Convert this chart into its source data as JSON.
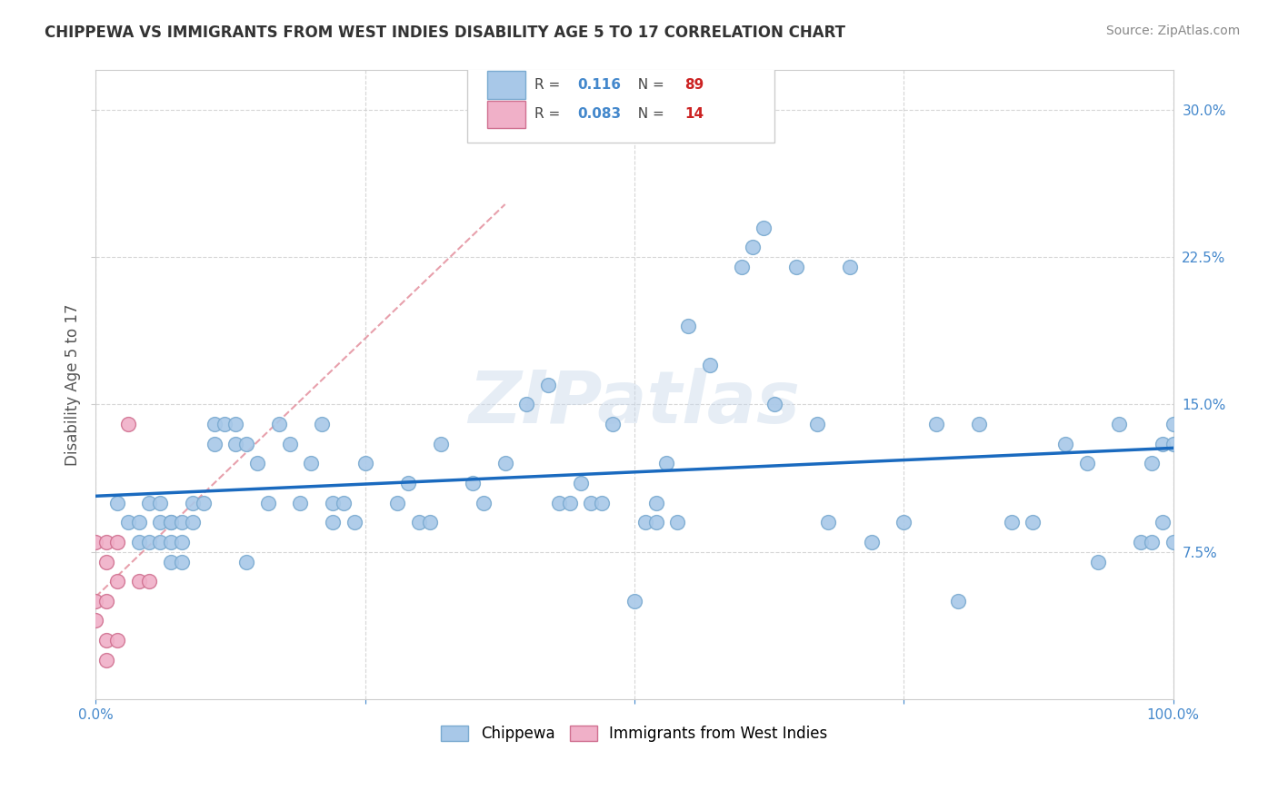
{
  "title": "CHIPPEWA VS IMMIGRANTS FROM WEST INDIES DISABILITY AGE 5 TO 17 CORRELATION CHART",
  "source": "Source: ZipAtlas.com",
  "ylabel": "Disability Age 5 to 17",
  "r_chippewa": 0.116,
  "n_chippewa": 89,
  "r_west_indies": 0.083,
  "n_west_indies": 14,
  "chippewa_color": "#a8c8e8",
  "chippewa_edge": "#7aaad0",
  "west_indies_color": "#f0b0c8",
  "west_indies_edge": "#d07090",
  "trend_chippewa_color": "#1a6abf",
  "trend_west_indies_color": "#e08090",
  "background_color": "#ffffff",
  "grid_color": "#cccccc",
  "watermark": "ZIPatlas",
  "xlim": [
    0.0,
    1.0
  ],
  "ylim": [
    0.0,
    0.32
  ],
  "yticks": [
    0.075,
    0.15,
    0.225,
    0.3
  ],
  "ytick_labels": [
    "7.5%",
    "15.0%",
    "22.5%",
    "30.0%"
  ],
  "xticks": [
    0.0,
    0.25,
    0.5,
    0.75,
    1.0
  ],
  "xtick_labels": [
    "0.0%",
    "",
    "",
    "",
    "100.0%"
  ],
  "chippewa_x": [
    0.02,
    0.03,
    0.04,
    0.04,
    0.05,
    0.05,
    0.06,
    0.06,
    0.06,
    0.07,
    0.07,
    0.07,
    0.07,
    0.08,
    0.08,
    0.08,
    0.09,
    0.09,
    0.1,
    0.11,
    0.11,
    0.12,
    0.13,
    0.13,
    0.14,
    0.14,
    0.15,
    0.16,
    0.17,
    0.18,
    0.19,
    0.2,
    0.21,
    0.22,
    0.22,
    0.23,
    0.24,
    0.25,
    0.28,
    0.29,
    0.3,
    0.31,
    0.32,
    0.35,
    0.36,
    0.38,
    0.4,
    0.42,
    0.43,
    0.44,
    0.45,
    0.46,
    0.47,
    0.48,
    0.5,
    0.51,
    0.52,
    0.52,
    0.53,
    0.54,
    0.55,
    0.57,
    0.6,
    0.61,
    0.62,
    0.63,
    0.65,
    0.67,
    0.68,
    0.7,
    0.72,
    0.75,
    0.78,
    0.8,
    0.82,
    0.85,
    0.87,
    0.9,
    0.92,
    0.93,
    0.95,
    0.97,
    0.98,
    0.98,
    0.99,
    0.99,
    1.0,
    1.0,
    1.0
  ],
  "chippewa_y": [
    0.1,
    0.09,
    0.09,
    0.08,
    0.1,
    0.08,
    0.1,
    0.09,
    0.08,
    0.09,
    0.09,
    0.08,
    0.07,
    0.09,
    0.08,
    0.07,
    0.1,
    0.09,
    0.1,
    0.14,
    0.13,
    0.14,
    0.14,
    0.13,
    0.13,
    0.07,
    0.12,
    0.1,
    0.14,
    0.13,
    0.1,
    0.12,
    0.14,
    0.1,
    0.09,
    0.1,
    0.09,
    0.12,
    0.1,
    0.11,
    0.09,
    0.09,
    0.13,
    0.11,
    0.1,
    0.12,
    0.15,
    0.16,
    0.1,
    0.1,
    0.11,
    0.1,
    0.1,
    0.14,
    0.05,
    0.09,
    0.1,
    0.09,
    0.12,
    0.09,
    0.19,
    0.17,
    0.22,
    0.23,
    0.24,
    0.15,
    0.22,
    0.14,
    0.09,
    0.22,
    0.08,
    0.09,
    0.14,
    0.05,
    0.14,
    0.09,
    0.09,
    0.13,
    0.12,
    0.07,
    0.14,
    0.08,
    0.12,
    0.08,
    0.13,
    0.09,
    0.14,
    0.08,
    0.13
  ],
  "west_indies_x": [
    0.0,
    0.0,
    0.0,
    0.01,
    0.01,
    0.01,
    0.01,
    0.01,
    0.02,
    0.02,
    0.02,
    0.03,
    0.04,
    0.05
  ],
  "west_indies_y": [
    0.08,
    0.05,
    0.04,
    0.08,
    0.07,
    0.05,
    0.03,
    0.02,
    0.08,
    0.06,
    0.03,
    0.14,
    0.06,
    0.06
  ],
  "title_color": "#333333",
  "axis_label_color": "#555555",
  "tick_color": "#4488cc",
  "source_color": "#888888",
  "legend_r_color": "#4488cc",
  "legend_n_color": "#cc2222"
}
